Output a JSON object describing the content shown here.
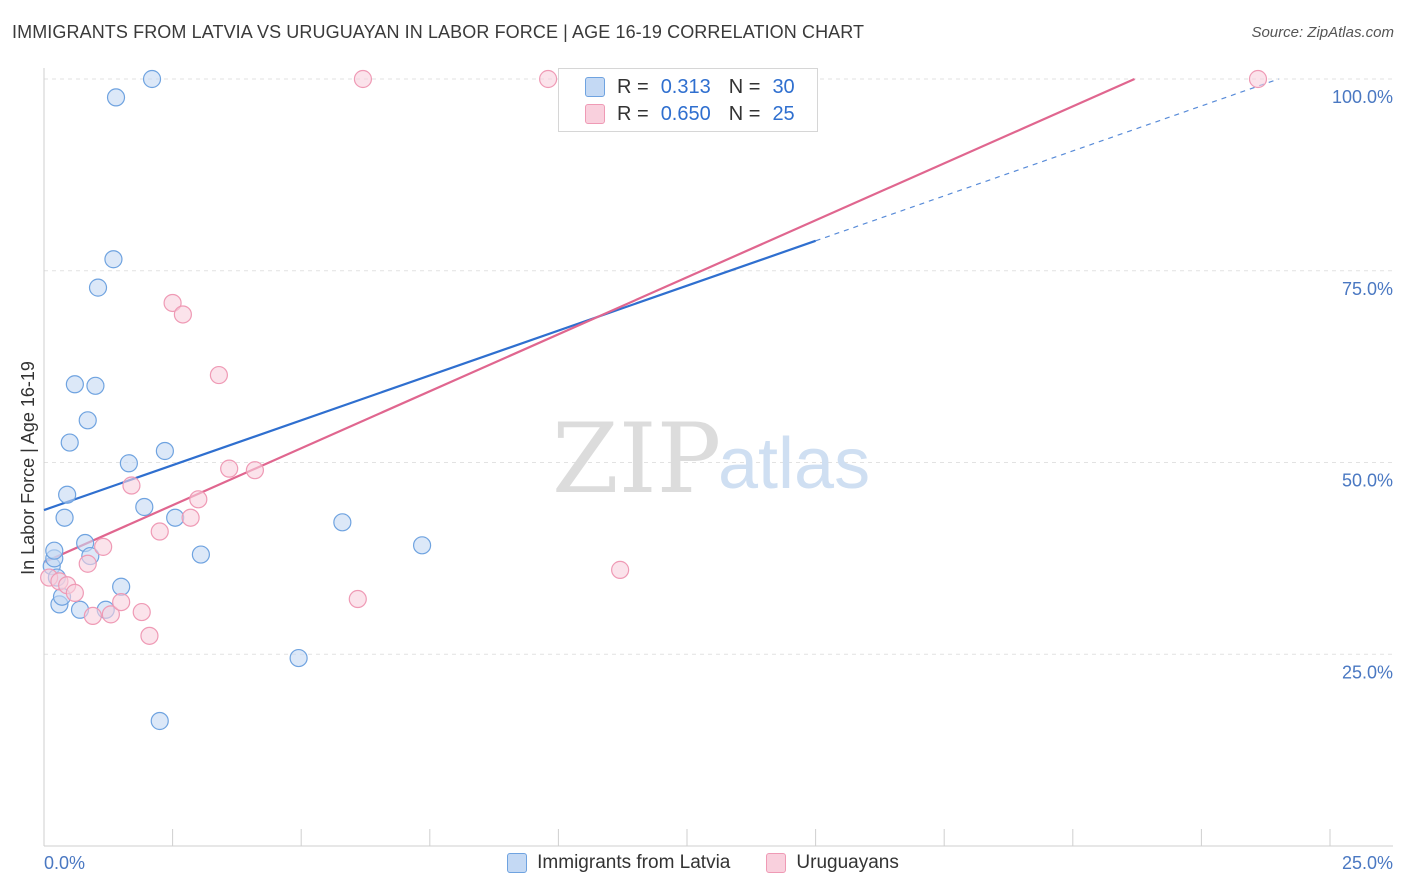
{
  "header": {
    "title": "IMMIGRANTS FROM LATVIA VS URUGUAYAN IN LABOR FORCE | AGE 16-19 CORRELATION CHART",
    "source": "Source: ZipAtlas.com"
  },
  "watermark": {
    "zip": "ZIP",
    "atlas": "atlas"
  },
  "legend": {
    "series1": {
      "r_label": "R =",
      "r_value": "0.313",
      "n_label": "N =",
      "n_value": "30"
    },
    "series2": {
      "r_label": "R =",
      "r_value": "0.650",
      "n_label": "N =",
      "n_value": "25"
    }
  },
  "chart_data": {
    "type": "scatter",
    "title": "IMMIGRANTS FROM LATVIA VS URUGUAYAN IN LABOR FORCE | AGE 16-19 CORRELATION CHART",
    "xlabel": "",
    "ylabel": "In Labor Force | Age 16-19",
    "xlim": [
      0,
      25
    ],
    "ylim": [
      0,
      100
    ],
    "x_tick_labels": [
      {
        "value": 0,
        "label": "0.0%"
      },
      {
        "value": 25,
        "label": "25.0%"
      }
    ],
    "y_tick_labels": [
      {
        "value": 100,
        "label": "100.0%"
      },
      {
        "value": 75,
        "label": "75.0%"
      },
      {
        "value": 50,
        "label": "50.0%"
      },
      {
        "value": 25,
        "label": "25.0%"
      }
    ],
    "grid": true,
    "legend_position": "top-center",
    "series": [
      {
        "name": "Immigrants from Latvia",
        "color": "#6fa3e0",
        "fill": "#c4d9f4",
        "trend_color": "#2f6fcf",
        "trend": {
          "x0": 0,
          "y0": 43.8,
          "x1": 15.0,
          "y1": 78.9,
          "dash_to_x": 24.0,
          "dash_to_y": 100.0
        },
        "points": [
          [
            0.15,
            36.5
          ],
          [
            0.2,
            37.5
          ],
          [
            0.2,
            38.5
          ],
          [
            0.25,
            35.0
          ],
          [
            0.3,
            31.5
          ],
          [
            0.35,
            32.5
          ],
          [
            0.4,
            42.8
          ],
          [
            0.45,
            45.8
          ],
          [
            0.5,
            52.6
          ],
          [
            0.6,
            60.2
          ],
          [
            0.7,
            30.8
          ],
          [
            0.8,
            39.5
          ],
          [
            0.85,
            55.5
          ],
          [
            0.9,
            37.8
          ],
          [
            1.0,
            60.0
          ],
          [
            1.05,
            72.8
          ],
          [
            1.2,
            30.8
          ],
          [
            1.35,
            76.5
          ],
          [
            1.4,
            97.6
          ],
          [
            1.5,
            33.8
          ],
          [
            1.65,
            49.9
          ],
          [
            1.95,
            44.2
          ],
          [
            2.1,
            100.0
          ],
          [
            2.25,
            16.3
          ],
          [
            2.35,
            51.5
          ],
          [
            2.55,
            42.8
          ],
          [
            3.05,
            38.0
          ],
          [
            4.95,
            24.5
          ],
          [
            5.8,
            42.2
          ],
          [
            7.35,
            39.2
          ]
        ]
      },
      {
        "name": "Uruguayans",
        "color": "#ef9ab5",
        "fill": "#f9d0dd",
        "trend_color": "#e0668f",
        "trend": {
          "x0": 0,
          "y0": 37.0,
          "x1": 21.2,
          "y1": 100.0
        },
        "points": [
          [
            0.1,
            35.0
          ],
          [
            0.3,
            34.5
          ],
          [
            0.45,
            34.0
          ],
          [
            0.6,
            33.0
          ],
          [
            0.85,
            36.8
          ],
          [
            0.95,
            30.0
          ],
          [
            1.15,
            39.0
          ],
          [
            1.3,
            30.2
          ],
          [
            1.5,
            31.8
          ],
          [
            1.7,
            47.0
          ],
          [
            1.9,
            30.5
          ],
          [
            2.05,
            27.4
          ],
          [
            2.25,
            41.0
          ],
          [
            2.5,
            70.8
          ],
          [
            2.7,
            69.3
          ],
          [
            2.85,
            42.8
          ],
          [
            3.0,
            45.2
          ],
          [
            3.4,
            61.4
          ],
          [
            3.6,
            49.2
          ],
          [
            4.1,
            49.0
          ],
          [
            6.1,
            32.2
          ],
          [
            6.2,
            100.0
          ],
          [
            9.8,
            100.0
          ],
          [
            11.2,
            36.0
          ],
          [
            23.6,
            100.0
          ]
        ]
      }
    ]
  },
  "bottom_legend": {
    "series1_label": "Immigrants from Latvia",
    "series2_label": "Uruguayans"
  }
}
